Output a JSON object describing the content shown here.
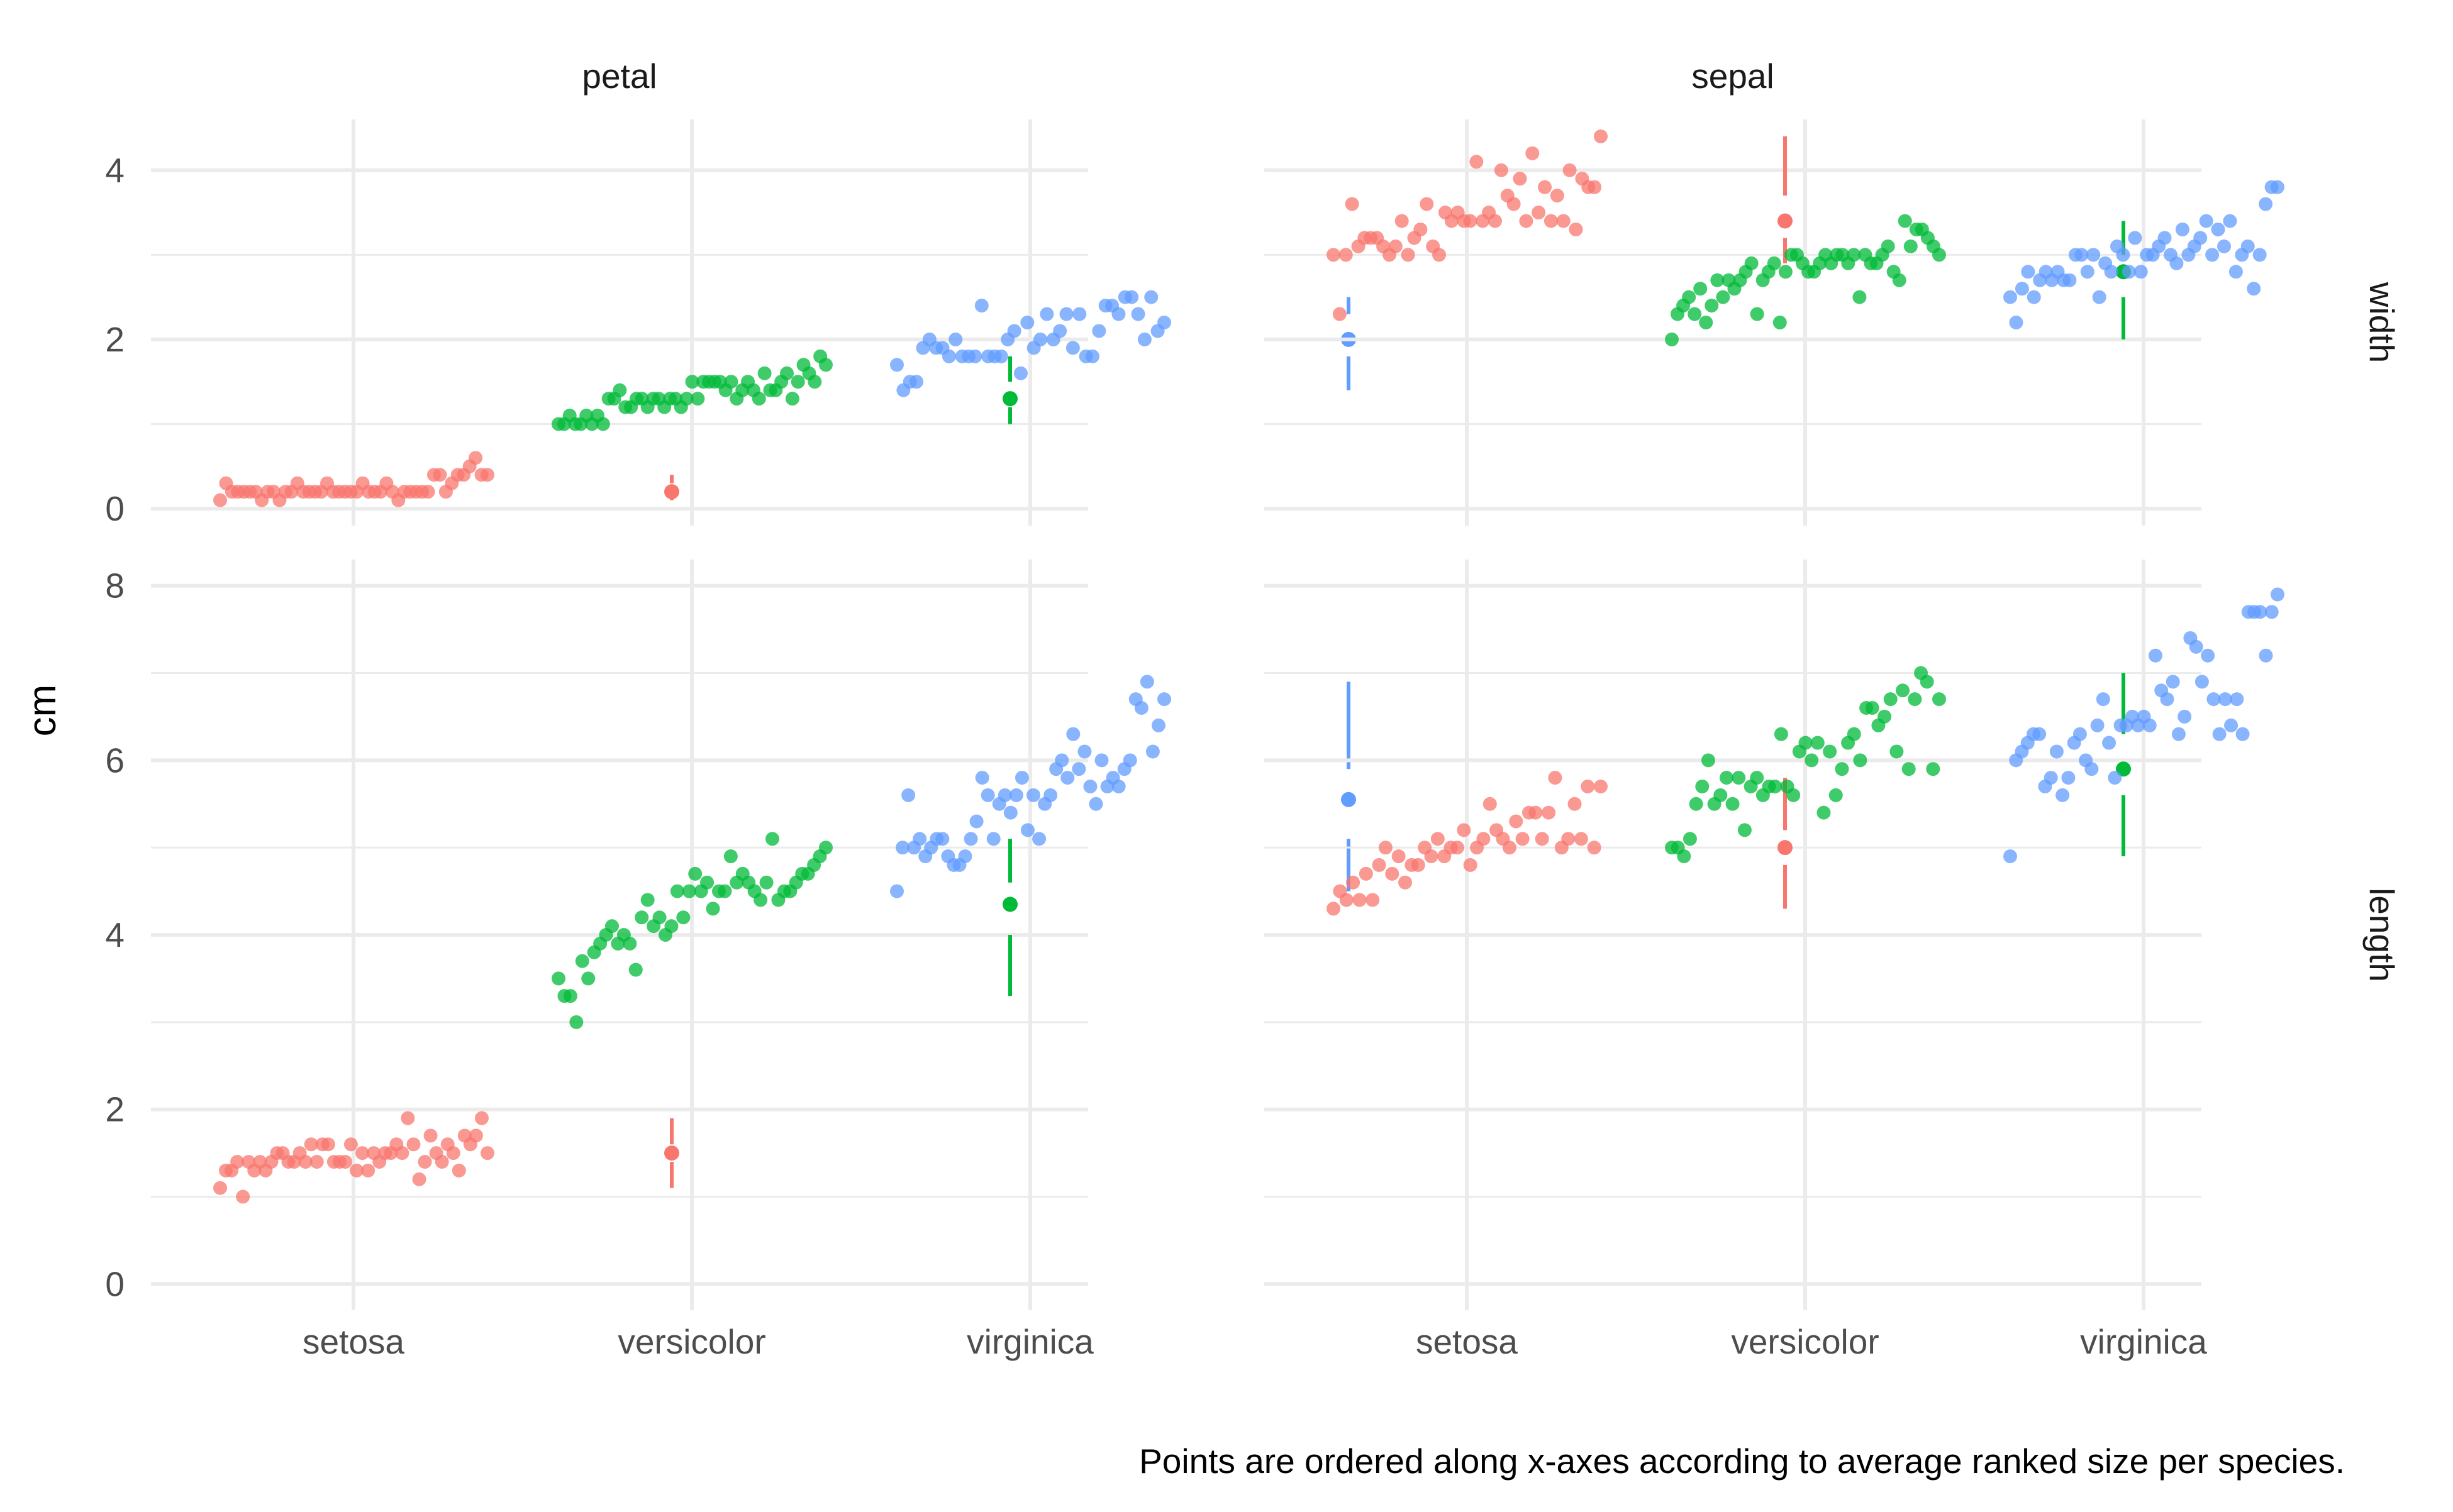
{
  "chart_data": {
    "type": "scatter",
    "title": "",
    "ylabel": "cm",
    "caption": "Points are ordered along x-axes according to average ranked size per species.",
    "facet_cols": [
      "petal",
      "sepal"
    ],
    "facet_rows": [
      "width",
      "length"
    ],
    "categories": [
      "setosa",
      "versicolor",
      "virginica"
    ],
    "colors": {
      "setosa": "#F8766D",
      "versicolor": "#00BA38",
      "virginica": "#619CFF"
    },
    "row_scales": {
      "width": {
        "ylim": [
          -0.2,
          4.6
        ],
        "ticks": [
          0,
          2,
          4
        ]
      },
      "length": {
        "ylim": [
          -0.3,
          8.3
        ],
        "ticks": [
          0,
          2,
          4,
          6,
          8
        ]
      }
    },
    "grid": true,
    "panels": [
      {
        "col": "petal",
        "row": "width",
        "series": [
          {
            "name": "setosa",
            "summary": {
              "min": 0.1,
              "q1": 0.2,
              "median": 0.2,
              "q3": 0.3,
              "max": 0.4
            },
            "values": [
              0.1,
              0.3,
              0.2,
              0.2,
              0.2,
              0.2,
              0.2,
              0.1,
              0.2,
              0.2,
              0.1,
              0.2,
              0.2,
              0.3,
              0.2,
              0.2,
              0.2,
              0.2,
              0.3,
              0.2,
              0.2,
              0.2,
              0.2,
              0.2,
              0.3,
              0.2,
              0.2,
              0.2,
              0.3,
              0.2,
              0.1,
              0.2,
              0.2,
              0.2,
              0.2,
              0.2,
              0.4,
              0.4,
              0.2,
              0.3,
              0.4,
              0.4,
              0.5,
              0.6,
              0.4,
              0.4
            ]
          },
          {
            "name": "versicolor",
            "summary": {
              "min": 1.0,
              "q1": 1.2,
              "median": 1.3,
              "q3": 1.5,
              "max": 1.8
            },
            "values": [
              1.0,
              1.0,
              1.1,
              1.0,
              1.0,
              1.1,
              1.0,
              1.1,
              1.0,
              1.3,
              1.3,
              1.4,
              1.2,
              1.2,
              1.3,
              1.3,
              1.2,
              1.3,
              1.3,
              1.2,
              1.3,
              1.3,
              1.2,
              1.3,
              1.5,
              1.3,
              1.5,
              1.5,
              1.5,
              1.5,
              1.4,
              1.5,
              1.3,
              1.4,
              1.5,
              1.4,
              1.3,
              1.6,
              1.4,
              1.4,
              1.5,
              1.6,
              1.3,
              1.5,
              1.7,
              1.6,
              1.5,
              1.8,
              1.7
            ]
          },
          {
            "name": "virginica",
            "summary": {
              "min": 1.4,
              "q1": 1.8,
              "median": 2.0,
              "q3": 2.3,
              "max": 2.5
            },
            "values": [
              1.7,
              1.4,
              1.5,
              1.5,
              1.9,
              2.0,
              1.9,
              1.9,
              1.8,
              2.0,
              1.8,
              1.8,
              1.8,
              2.4,
              1.8,
              1.8,
              1.8,
              2.0,
              2.1,
              1.6,
              2.2,
              1.9,
              2.0,
              2.3,
              2.0,
              2.1,
              2.3,
              1.9,
              2.3,
              1.8,
              1.8,
              2.1,
              2.4,
              2.4,
              2.3,
              2.5,
              2.5,
              2.3,
              2.0,
              2.5,
              2.1,
              2.2
            ]
          }
        ]
      },
      {
        "col": "sepal",
        "row": "width",
        "series": [
          {
            "name": "setosa",
            "summary": {
              "min": 2.9,
              "q1": 3.2,
              "median": 3.4,
              "q3": 3.7,
              "max": 4.4
            },
            "values": [
              3.0,
              2.3,
              3.0,
              3.6,
              3.1,
              3.2,
              3.2,
              3.2,
              3.1,
              3.0,
              3.1,
              3.4,
              3.0,
              3.2,
              3.3,
              3.6,
              3.1,
              3.0,
              3.5,
              3.4,
              3.5,
              3.4,
              3.4,
              4.1,
              3.4,
              3.5,
              3.4,
              4.0,
              3.7,
              3.6,
              3.9,
              3.4,
              4.2,
              3.5,
              3.8,
              3.4,
              3.7,
              3.4,
              4.0,
              3.3,
              3.9,
              3.8,
              3.8,
              4.4
            ]
          },
          {
            "name": "versicolor",
            "summary": {
              "min": 2.0,
              "q1": 2.5,
              "median": 2.8,
              "q3": 3.0,
              "max": 3.4
            },
            "values": [
              2.0,
              2.3,
              2.4,
              2.5,
              2.3,
              2.6,
              2.2,
              2.4,
              2.7,
              2.5,
              2.7,
              2.6,
              2.7,
              2.8,
              2.9,
              2.3,
              2.7,
              2.8,
              2.9,
              2.2,
              2.8,
              3.0,
              3.0,
              2.9,
              2.8,
              2.8,
              2.9,
              3.0,
              2.9,
              3.0,
              3.0,
              2.9,
              3.0,
              2.5,
              3.0,
              2.9,
              2.9,
              3.0,
              3.1,
              2.8,
              2.7,
              3.4,
              3.1,
              3.3,
              3.3,
              3.2,
              3.1,
              3.0
            ]
          },
          {
            "name": "virginica",
            "summary": {
              "min": 2.2,
              "q1": 2.8,
              "median": 3.0,
              "q3": 3.2,
              "max": 3.8
            },
            "values": [
              2.5,
              2.2,
              2.6,
              2.8,
              2.5,
              2.7,
              2.8,
              2.7,
              2.8,
              2.7,
              2.7,
              3.0,
              3.0,
              2.8,
              3.0,
              2.5,
              2.9,
              2.8,
              3.1,
              3.0,
              2.8,
              3.2,
              2.8,
              3.0,
              3.0,
              3.1,
              3.2,
              3.0,
              2.9,
              3.3,
              3.0,
              3.1,
              3.2,
              3.4,
              3.0,
              3.3,
              3.1,
              3.4,
              2.8,
              3.0,
              3.1,
              2.6,
              3.0,
              3.6,
              3.8,
              3.8
            ]
          }
        ]
      },
      {
        "col": "petal",
        "row": "length",
        "series": [
          {
            "name": "setosa",
            "summary": {
              "min": 1.1,
              "q1": 1.4,
              "median": 1.5,
              "q3": 1.6,
              "max": 1.9
            },
            "values": [
              1.1,
              1.3,
              1.3,
              1.4,
              1.0,
              1.4,
              1.3,
              1.4,
              1.3,
              1.4,
              1.5,
              1.5,
              1.4,
              1.4,
              1.5,
              1.4,
              1.6,
              1.4,
              1.6,
              1.6,
              1.4,
              1.4,
              1.4,
              1.6,
              1.3,
              1.5,
              1.3,
              1.5,
              1.4,
              1.5,
              1.5,
              1.6,
              1.5,
              1.9,
              1.6,
              1.2,
              1.4,
              1.7,
              1.5,
              1.4,
              1.6,
              1.5,
              1.3,
              1.7,
              1.6,
              1.7,
              1.9,
              1.5
            ]
          },
          {
            "name": "versicolor",
            "summary": {
              "min": 3.3,
              "q1": 4.0,
              "median": 4.35,
              "q3": 4.6,
              "max": 5.1
            },
            "values": [
              3.5,
              3.3,
              3.3,
              3.0,
              3.7,
              3.5,
              3.8,
              3.9,
              4.0,
              4.1,
              3.9,
              4.0,
              3.9,
              3.6,
              4.2,
              4.4,
              4.1,
              4.2,
              4.0,
              4.1,
              4.5,
              4.2,
              4.5,
              4.7,
              4.5,
              4.6,
              4.3,
              4.5,
              4.5,
              4.9,
              4.6,
              4.7,
              4.6,
              4.5,
              4.4,
              4.6,
              5.1,
              4.4,
              4.5,
              4.5,
              4.6,
              4.7,
              4.7,
              4.8,
              4.9,
              5.0
            ]
          },
          {
            "name": "virginica",
            "summary": {
              "min": 4.5,
              "q1": 5.1,
              "median": 5.55,
              "q3": 5.9,
              "max": 6.9
            },
            "values": [
              4.5,
              5.0,
              5.6,
              5.0,
              5.1,
              4.9,
              5.0,
              5.1,
              5.1,
              4.9,
              4.8,
              4.8,
              4.9,
              5.1,
              5.3,
              5.8,
              5.6,
              5.1,
              5.5,
              5.6,
              5.4,
              5.6,
              5.8,
              5.2,
              5.6,
              5.1,
              5.5,
              5.6,
              5.9,
              6.0,
              5.8,
              6.3,
              5.9,
              6.1,
              5.7,
              5.5,
              6.0,
              5.7,
              5.8,
              5.7,
              5.9,
              6.0,
              6.7,
              6.6,
              6.9,
              6.1,
              6.4,
              6.7
            ]
          }
        ]
      },
      {
        "col": "sepal",
        "row": "length",
        "series": [
          {
            "name": "setosa",
            "summary": {
              "min": 4.3,
              "q1": 4.8,
              "median": 5.0,
              "q3": 5.2,
              "max": 5.8
            },
            "values": [
              4.3,
              4.5,
              4.4,
              4.6,
              4.4,
              4.7,
              4.4,
              4.8,
              5.0,
              4.7,
              4.9,
              4.6,
              4.8,
              4.8,
              5.0,
              4.9,
              5.1,
              4.9,
              5.0,
              5.0,
              5.2,
              4.8,
              5.0,
              5.1,
              5.5,
              5.2,
              5.1,
              5.0,
              5.3,
              5.1,
              5.4,
              5.4,
              5.1,
              5.4,
              5.8,
              5.0,
              5.1,
              5.5,
              5.1,
              5.7,
              5.0,
              5.7
            ]
          },
          {
            "name": "versicolor",
            "summary": {
              "min": 4.9,
              "q1": 5.6,
              "median": 5.9,
              "q3": 6.3,
              "max": 7.0
            },
            "values": [
              5.0,
              5.0,
              4.9,
              5.1,
              5.5,
              5.7,
              6.0,
              5.5,
              5.6,
              5.8,
              5.5,
              5.8,
              5.2,
              5.7,
              5.8,
              5.6,
              5.7,
              5.7,
              6.3,
              5.7,
              5.6,
              6.1,
              6.2,
              6.0,
              6.2,
              5.4,
              6.1,
              5.6,
              5.9,
              6.2,
              6.3,
              6.0,
              6.6,
              6.6,
              6.4,
              6.5,
              6.7,
              6.1,
              6.8,
              5.9,
              6.7,
              7.0,
              6.9,
              5.9,
              6.7
            ]
          },
          {
            "name": "virginica",
            "summary": {
              "min": 5.6,
              "q1": 6.2,
              "median": 6.5,
              "q3": 6.9,
              "max": 7.9
            },
            "values": [
              4.9,
              6.0,
              6.1,
              6.2,
              6.3,
              6.3,
              5.7,
              5.8,
              6.1,
              5.6,
              5.8,
              6.2,
              6.3,
              6.0,
              5.9,
              6.4,
              6.7,
              6.2,
              5.8,
              6.4,
              6.4,
              6.5,
              6.4,
              6.5,
              6.4,
              7.2,
              6.8,
              6.7,
              6.9,
              6.3,
              6.5,
              7.4,
              7.3,
              6.9,
              7.2,
              6.7,
              6.3,
              6.7,
              6.4,
              6.7,
              6.3,
              7.7,
              7.7,
              7.7,
              7.2,
              7.7,
              7.9
            ]
          }
        ]
      }
    ]
  }
}
